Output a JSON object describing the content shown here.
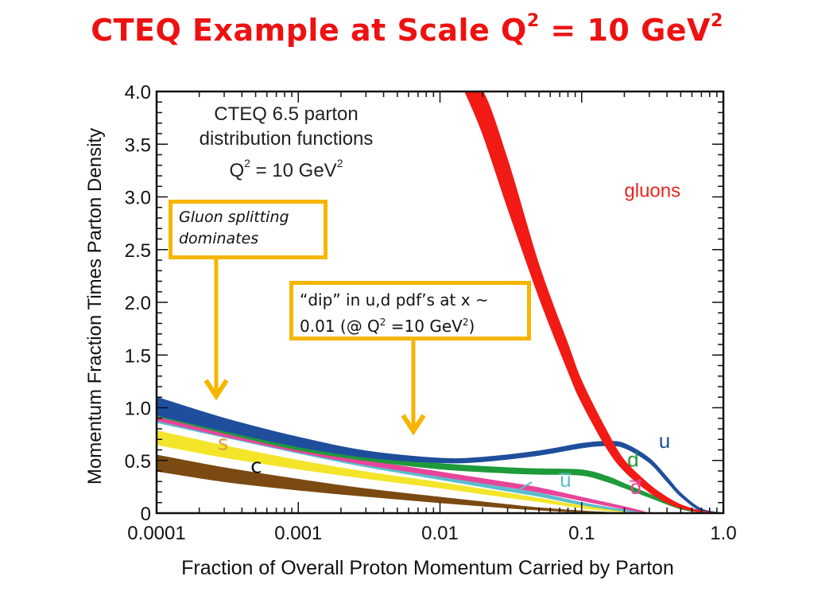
{
  "slide": {
    "title_main": "CTEQ Example at Scale Q",
    "title_sup1": "2",
    "title_mid": " = 10 GeV",
    "title_sup2": "2"
  },
  "annotations": {
    "inner_title_line1": "CTEQ 6.5 parton",
    "inner_title_line2": "distribution functions",
    "inner_title_q": "Q",
    "inner_title_q_sup": "2",
    "inner_title_rest": " = 10 GeV",
    "inner_title_rest_sup": "2",
    "gluon_box_line1": "Gluon splitting",
    "gluon_box_line2": "dominates",
    "dip_box_line1": "“dip” in u,d pdf’s at x ~",
    "dip_box_line2a": "0.01 (@ Q",
    "dip_box_sup1": "2",
    "dip_box_line2b": " =10 GeV",
    "dip_box_sup2": "2",
    "dip_box_line2c": ")",
    "box_color": "#f7b500"
  },
  "chart_data": {
    "type": "area",
    "title": "CTEQ 6.5 parton distribution functions, Q^2 = 10 GeV^2",
    "xlabel": "Fraction of Overall Proton Momentum Carried by Parton",
    "ylabel": "Momentum Fraction Times Parton Density",
    "xscale": "log",
    "xlim": [
      0.0001,
      1.0
    ],
    "ylim": [
      0,
      4.0
    ],
    "xticks": [
      "0.0001",
      "0.001",
      "0.01",
      "0.1",
      "1.0"
    ],
    "xtick_values": [
      0.0001,
      0.001,
      0.01,
      0.1,
      1.0
    ],
    "yticks": [
      "0",
      "0.5",
      "1.0",
      "1.5",
      "2.0",
      "2.5",
      "3.0",
      "3.5",
      "4.0"
    ],
    "ytick_values": [
      0,
      0.5,
      1.0,
      1.5,
      2.0,
      2.5,
      3.0,
      3.5,
      4.0
    ],
    "grid": false,
    "series": [
      {
        "name": "gluons",
        "label": "gluons",
        "color": "#f21a14",
        "x": [
          0.015,
          0.02,
          0.03,
          0.05,
          0.08,
          0.1,
          0.15,
          0.2,
          0.3,
          0.4,
          0.5,
          0.7,
          1.0
        ],
        "lower": [
          4.0,
          3.6,
          2.9,
          2.05,
          1.35,
          1.05,
          0.62,
          0.4,
          0.2,
          0.1,
          0.05,
          0.01,
          0.0
        ],
        "upper": [
          4.0,
          4.0,
          3.35,
          2.35,
          1.6,
          1.25,
          0.78,
          0.5,
          0.27,
          0.15,
          0.08,
          0.02,
          0.0
        ]
      },
      {
        "name": "u",
        "label": "u",
        "color": "#1f4e9c",
        "x": [
          0.0001,
          0.0003,
          0.001,
          0.003,
          0.01,
          0.02,
          0.05,
          0.1,
          0.15,
          0.2,
          0.3,
          0.4,
          0.5,
          0.7,
          1.0
        ],
        "lower": [
          0.93,
          0.78,
          0.63,
          0.53,
          0.48,
          0.49,
          0.55,
          0.62,
          0.64,
          0.62,
          0.48,
          0.3,
          0.16,
          0.02,
          0.0
        ],
        "upper": [
          1.1,
          0.9,
          0.72,
          0.59,
          0.52,
          0.53,
          0.59,
          0.66,
          0.68,
          0.66,
          0.52,
          0.34,
          0.19,
          0.04,
          0.0
        ]
      },
      {
        "name": "d",
        "label": "d",
        "color": "#1f9a3a",
        "x": [
          0.0001,
          0.0003,
          0.001,
          0.003,
          0.01,
          0.03,
          0.05,
          0.1,
          0.15,
          0.2,
          0.3,
          0.5,
          0.7,
          1.0
        ],
        "lower": [
          0.92,
          0.76,
          0.6,
          0.5,
          0.42,
          0.38,
          0.37,
          0.36,
          0.3,
          0.24,
          0.15,
          0.04,
          0.01,
          0.0
        ],
        "upper": [
          0.95,
          0.79,
          0.64,
          0.54,
          0.47,
          0.43,
          0.42,
          0.41,
          0.35,
          0.28,
          0.18,
          0.06,
          0.02,
          0.0
        ]
      },
      {
        "name": "dbar",
        "label": "d̅",
        "color": "#e8449a",
        "x": [
          0.0001,
          0.0003,
          0.001,
          0.003,
          0.01,
          0.03,
          0.05,
          0.1,
          0.2,
          0.3
        ],
        "lower": [
          0.88,
          0.73,
          0.58,
          0.46,
          0.35,
          0.25,
          0.2,
          0.12,
          0.04,
          0.0
        ],
        "upper": [
          0.92,
          0.77,
          0.62,
          0.5,
          0.39,
          0.29,
          0.24,
          0.15,
          0.06,
          0.0
        ]
      },
      {
        "name": "ubar",
        "label": "u̅",
        "color": "#5bbccc",
        "x": [
          0.0001,
          0.0003,
          0.001,
          0.003,
          0.01,
          0.03,
          0.05,
          0.1,
          0.2,
          0.3
        ],
        "lower": [
          0.86,
          0.72,
          0.57,
          0.44,
          0.32,
          0.21,
          0.16,
          0.08,
          0.02,
          0.0
        ],
        "upper": [
          0.9,
          0.75,
          0.6,
          0.47,
          0.35,
          0.24,
          0.19,
          0.1,
          0.03,
          0.0
        ]
      },
      {
        "name": "s",
        "label": "s",
        "color": "#f4e52b",
        "x": [
          0.0001,
          0.0003,
          0.001,
          0.003,
          0.01,
          0.03,
          0.05,
          0.1,
          0.2,
          0.3
        ],
        "lower": [
          0.65,
          0.53,
          0.42,
          0.33,
          0.24,
          0.15,
          0.11,
          0.05,
          0.01,
          0.0
        ],
        "upper": [
          0.78,
          0.64,
          0.5,
          0.39,
          0.29,
          0.19,
          0.14,
          0.07,
          0.02,
          0.0
        ]
      },
      {
        "name": "c",
        "label": "c",
        "color": "#7b4a12",
        "x": [
          0.0001,
          0.0003,
          0.001,
          0.003,
          0.01,
          0.03,
          0.05,
          0.1,
          0.2
        ],
        "lower": [
          0.4,
          0.3,
          0.22,
          0.16,
          0.1,
          0.05,
          0.03,
          0.01,
          0.0
        ],
        "upper": [
          0.55,
          0.43,
          0.32,
          0.23,
          0.15,
          0.08,
          0.05,
          0.02,
          0.0
        ]
      }
    ],
    "series_labels": [
      {
        "text": "gluons",
        "x": 0.2,
        "y": 3.0,
        "color": "#e8251e"
      },
      {
        "text": "u",
        "x": 0.35,
        "y": 0.62,
        "color": "#1f4e9c"
      },
      {
        "text": "d",
        "x": 0.21,
        "y": 0.44,
        "color": "#1f9a3a"
      },
      {
        "text": "d̅",
        "x": 0.22,
        "y": 0.18,
        "color": "#e8449a"
      },
      {
        "text": "u̅",
        "x": 0.07,
        "y": 0.25,
        "color": "#5bbccc"
      },
      {
        "text": "s",
        "x": 0.00027,
        "y": 0.6,
        "color": "#e59a35"
      },
      {
        "text": "c",
        "x": 0.00046,
        "y": 0.38,
        "color": "#111111"
      }
    ]
  }
}
